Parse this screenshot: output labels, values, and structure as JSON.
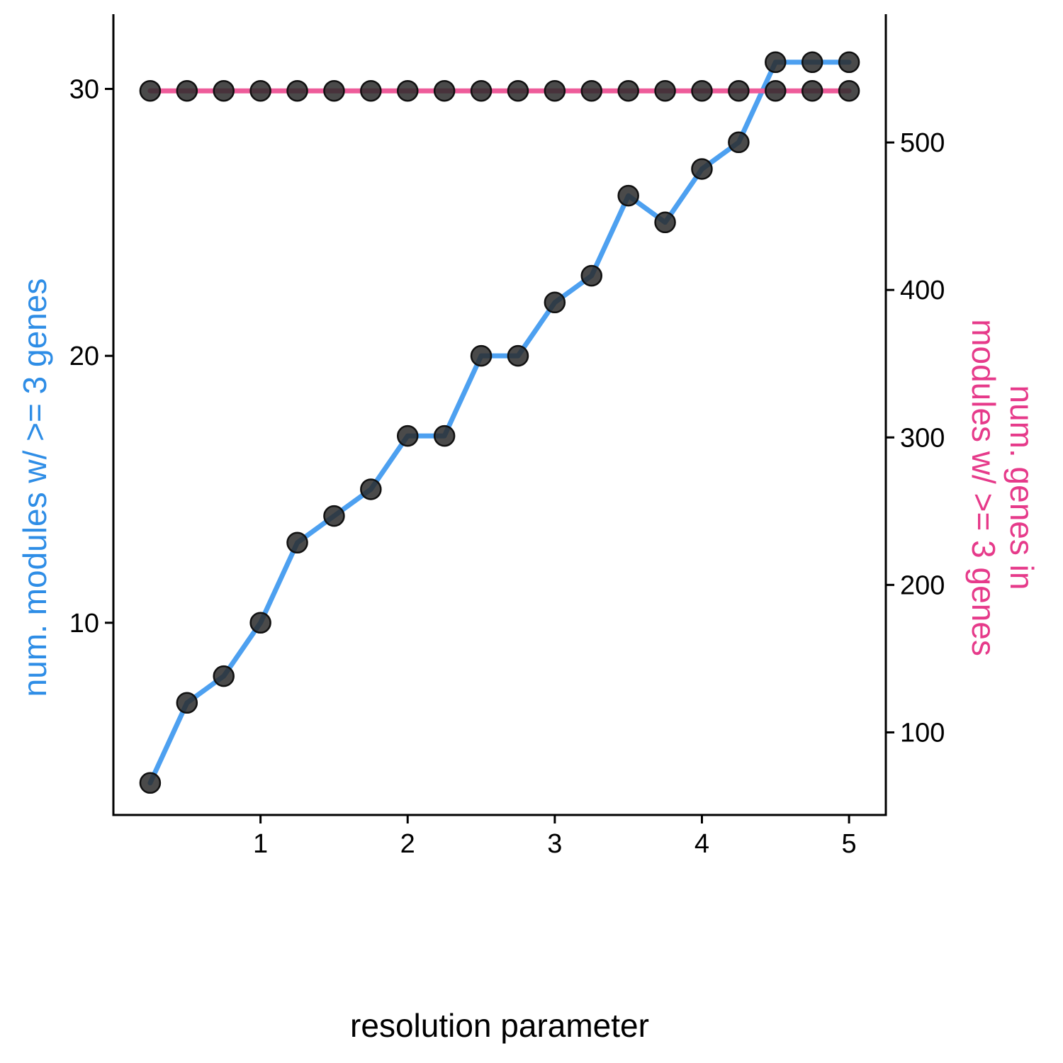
{
  "chart_data": {
    "type": "line",
    "xlabel": "resolution parameter",
    "ylabel_left": "num. modules w/ >= 3 genes",
    "ylabel_right_lines": [
      "num. genes in",
      "modules w/ >= 3 genes"
    ],
    "x": [
      0.25,
      0.5,
      0.75,
      1.0,
      1.25,
      1.5,
      1.75,
      2.0,
      2.25,
      2.5,
      2.75,
      3.0,
      3.25,
      3.5,
      3.75,
      4.0,
      4.25,
      4.5,
      4.75,
      5.0
    ],
    "xlim": [
      0.0,
      5.25
    ],
    "xticks": [
      1,
      2,
      3,
      4,
      5
    ],
    "ylim_left": [
      2.8,
      32.8
    ],
    "yticks_left": [
      10,
      20,
      30
    ],
    "ylim_right": [
      44,
      587
    ],
    "yticks_right": [
      100,
      200,
      300,
      400,
      500
    ],
    "series": [
      {
        "axis": "left",
        "color": "#4DA0F0",
        "values": [
          4,
          7,
          8,
          10,
          13,
          14,
          15,
          17,
          17,
          20,
          20,
          22,
          23,
          26,
          25,
          27,
          28,
          31,
          31,
          31
        ]
      },
      {
        "axis": "right",
        "color": "#EE5C9A",
        "values": [
          535,
          535,
          535,
          535,
          535,
          535,
          535,
          535,
          535,
          535,
          535,
          535,
          535,
          535,
          535,
          535,
          535,
          535,
          535,
          535
        ]
      }
    ],
    "colors": {
      "left_axis_title": "#2E8DE6",
      "right_axis_title": "#E63A8A",
      "point_fill": "#2a2a2a"
    }
  }
}
